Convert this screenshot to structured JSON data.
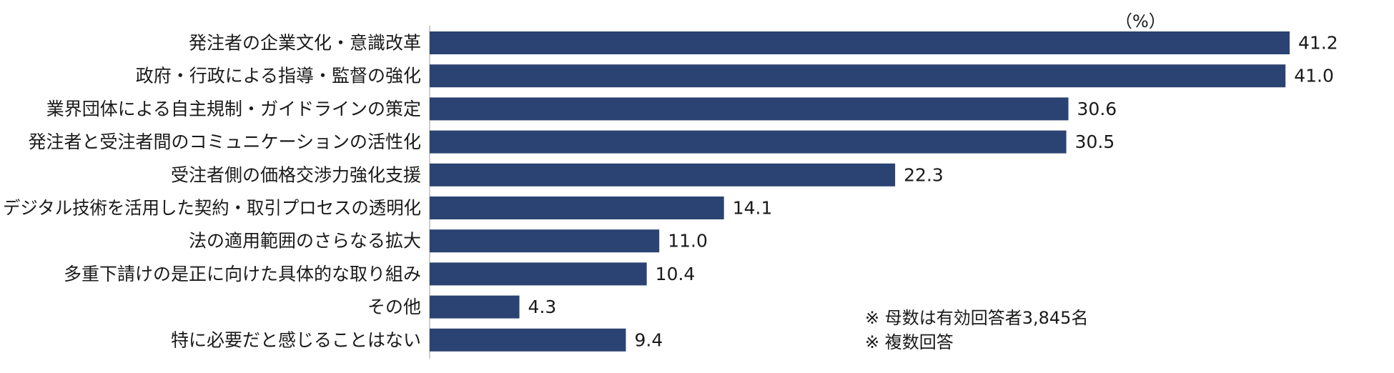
{
  "chart_data": {
    "type": "bar",
    "orientation": "horizontal",
    "unit_label": "（%）",
    "categories": [
      "発注者の企業文化・意識改革",
      "政府・行政による指導・監督の強化",
      "業界団体による自主規制・ガイドラインの策定",
      "発注者と受注者間のコミュニケーションの活性化",
      "受注者側の価格交渉力強化支援",
      "デジタル技術を活用した契約・取引プロセスの透明化",
      "法の適用範囲のさらなる拡大",
      "多重下請けの是正に向けた具体的な取り組み",
      "その他",
      "特に必要だと感じることはない"
    ],
    "values": [
      41.2,
      41.0,
      30.6,
      30.5,
      22.3,
      14.1,
      11.0,
      10.4,
      4.3,
      9.4
    ],
    "value_labels": [
      "41.2",
      "41.0",
      "30.6",
      "30.5",
      "22.3",
      "14.1",
      "11.0",
      "10.4",
      "4.3",
      "9.4"
    ],
    "xlim": [
      0,
      45
    ],
    "bar_color": "#2b4372",
    "axis_color": "#bfbfbf"
  },
  "notes": [
    "※ 母数は有効回答者3,845名",
    "※ 複数回答"
  ]
}
